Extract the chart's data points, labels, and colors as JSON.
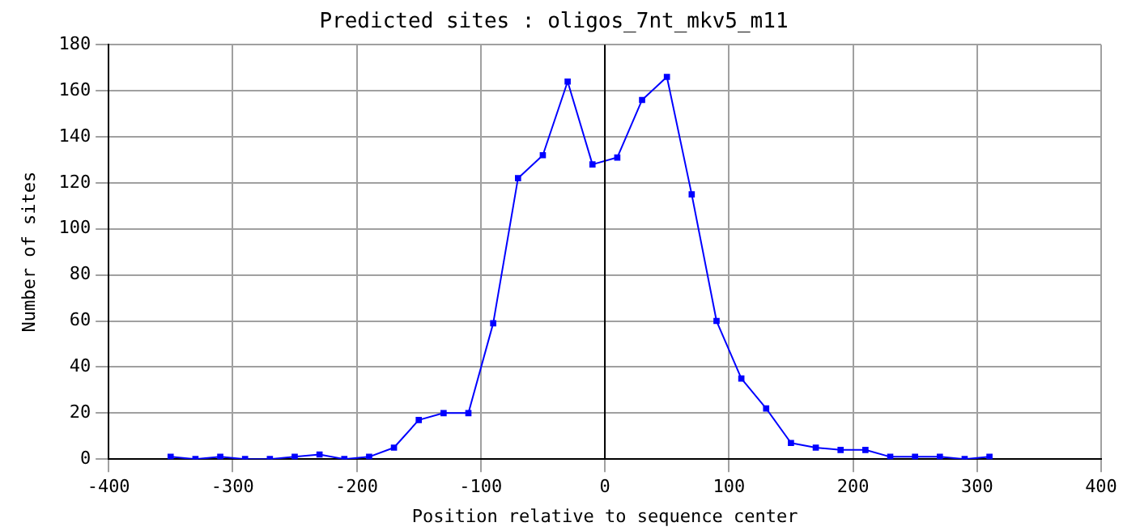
{
  "chart_data": {
    "type": "line",
    "title": "Predicted sites : oligos_7nt_mkv5_m11",
    "xlabel": "Position relative to sequence center",
    "ylabel": "Number of sites",
    "x": [
      -350,
      -330,
      -310,
      -290,
      -270,
      -250,
      -230,
      -210,
      -190,
      -170,
      -150,
      -130,
      -110,
      -90,
      -70,
      -50,
      -30,
      -10,
      10,
      30,
      50,
      70,
      90,
      110,
      130,
      150,
      170,
      190,
      210,
      230,
      250,
      270,
      290,
      310
    ],
    "series": [
      {
        "color": "#0000ff",
        "values": [
          1,
          0,
          1,
          0,
          0,
          1,
          2,
          0,
          1,
          5,
          17,
          20,
          20,
          59,
          122,
          132,
          164,
          128,
          131,
          156,
          166,
          115,
          60,
          35,
          22,
          7,
          5,
          4,
          4,
          1,
          1,
          1,
          0,
          1
        ]
      }
    ],
    "xlim": [
      -400,
      400
    ],
    "xticks": [
      -400,
      -300,
      -200,
      -100,
      0,
      100,
      200,
      300,
      400
    ],
    "ylim": [
      0,
      180
    ],
    "yticks": [
      0,
      20,
      40,
      60,
      80,
      100,
      120,
      140,
      160,
      180
    ],
    "grid": true,
    "marker": "square",
    "line_style": "solid",
    "legend": false,
    "ref_lines": [
      {
        "axis": "x",
        "value": 0,
        "color": "#000000"
      }
    ]
  }
}
